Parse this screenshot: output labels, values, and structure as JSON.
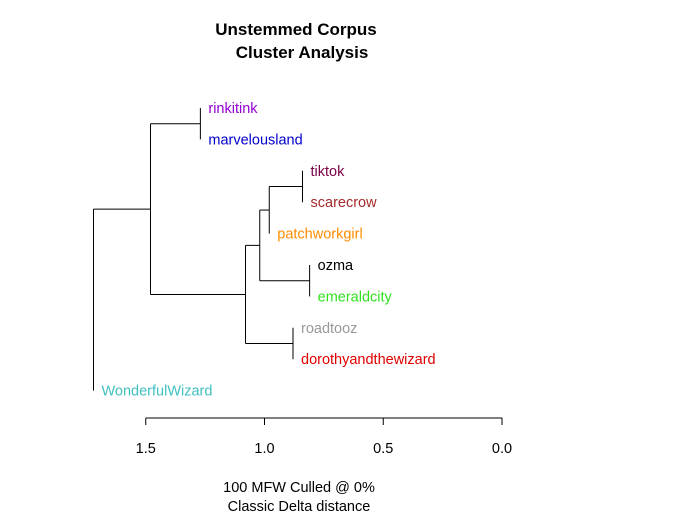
{
  "title": {
    "line1": "Unstemmed Corpus",
    "line2": "Cluster Analysis"
  },
  "caption": {
    "line1": "100 MFW  Culled @ 0%",
    "line2": "Classic Delta distance"
  },
  "axis": {
    "domain": [
      1.6,
      0.0
    ],
    "ticks": [
      {
        "value": 1.5,
        "label": "1.5"
      },
      {
        "value": 1.0,
        "label": "1.0"
      },
      {
        "value": 0.5,
        "label": "0.5"
      },
      {
        "value": 0.0,
        "label": "0.0"
      }
    ]
  },
  "leaves": [
    {
      "id": "rinkitink",
      "label": "rinkitink",
      "color": "#9400D3"
    },
    {
      "id": "marvelousland",
      "label": "marvelousland",
      "color": "#0000CD"
    },
    {
      "id": "tiktok",
      "label": "tiktok",
      "color": "#7A0044"
    },
    {
      "id": "scarecrow",
      "label": "scarecrow",
      "color": "#A52A2A"
    },
    {
      "id": "patchworkgirl",
      "label": "patchworkgirl",
      "color": "#FF8C00"
    },
    {
      "id": "ozma",
      "label": "ozma",
      "color": "#000000"
    },
    {
      "id": "emeraldcity",
      "label": "emeraldcity",
      "color": "#32E01E"
    },
    {
      "id": "roadtooz",
      "label": "roadtooz",
      "color": "#999999"
    },
    {
      "id": "dorothyandthewizard",
      "label": "dorothyandthewizard",
      "color": "#E00000"
    },
    {
      "id": "WonderfulWizard",
      "label": "WonderfulWizard",
      "color": "#40C0C0"
    }
  ],
  "merges": [
    {
      "id": "m1",
      "children": [
        "rinkitink",
        "marvelousland"
      ],
      "height": 1.27
    },
    {
      "id": "m2",
      "children": [
        "tiktok",
        "scarecrow"
      ],
      "height": 0.84
    },
    {
      "id": "m3",
      "children": [
        "m2",
        "patchworkgirl"
      ],
      "height": 0.98
    },
    {
      "id": "m4",
      "children": [
        "ozma",
        "emeraldcity"
      ],
      "height": 0.81
    },
    {
      "id": "m5",
      "children": [
        "m3",
        "m4"
      ],
      "height": 1.02
    },
    {
      "id": "m6",
      "children": [
        "roadtooz",
        "dorothyandthewizard"
      ],
      "height": 0.88
    },
    {
      "id": "m7",
      "children": [
        "m5",
        "m6"
      ],
      "height": 1.08
    },
    {
      "id": "m8",
      "children": [
        "m1",
        "m7"
      ],
      "height": 1.48
    },
    {
      "id": "m9",
      "children": [
        "m8",
        "WonderfulWizard"
      ],
      "height": 1.72
    }
  ]
}
